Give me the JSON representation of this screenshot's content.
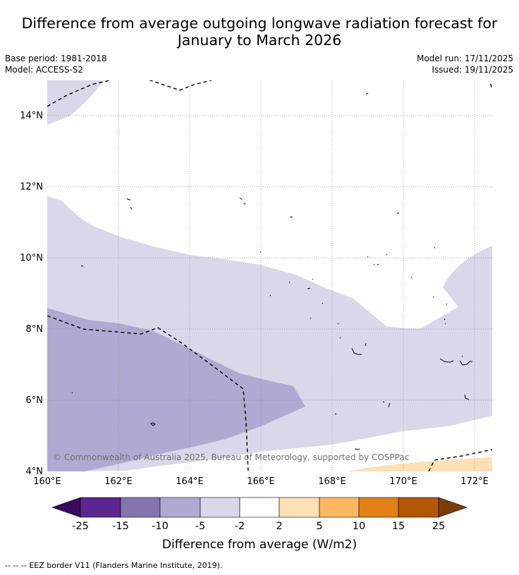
{
  "title": {
    "line1": "Difference from average outgoing longwave radiation forecast for",
    "line2": "January to March 2026"
  },
  "meta_left": {
    "base_period": "Base period: 1981-2018",
    "model": "Model: ACCESS-S2"
  },
  "meta_right": {
    "model_run": "Model run: 17/11/2025",
    "issued": "Issued: 19/11/2025"
  },
  "map": {
    "lon_range": [
      160,
      172.5
    ],
    "lat_range": [
      4,
      15
    ],
    "lat_ticks": [
      {
        "value": 14,
        "label": "14°N"
      },
      {
        "value": 12,
        "label": "12°N"
      },
      {
        "value": 10,
        "label": "10°N"
      },
      {
        "value": 8,
        "label": "8°N"
      },
      {
        "value": 6,
        "label": "6°N"
      },
      {
        "value": 4,
        "label": "4°N"
      }
    ],
    "lon_ticks": [
      {
        "value": 160,
        "label": "160°E"
      },
      {
        "value": 162,
        "label": "162°E"
      },
      {
        "value": 164,
        "label": "164°E"
      },
      {
        "value": 166,
        "label": "166°E"
      },
      {
        "value": 168,
        "label": "168°E"
      },
      {
        "value": 170,
        "label": "170°E"
      },
      {
        "value": 172,
        "label": "172°E"
      }
    ],
    "copyright": "© Commonwealth of Australia 2025, Bureau of Meteorology, supported by COSPPac",
    "colors": {
      "band_m5_m2": "#d8d8ea",
      "band_m10_m5": "#b0aad2",
      "band_p2_p5": "#fde0b6",
      "grid": "#888888",
      "eez": "#000000"
    }
  },
  "colorbar": {
    "ticks": [
      "-25",
      "-15",
      "-10",
      "-5",
      "-2",
      "2",
      "5",
      "10",
      "15",
      "25"
    ],
    "colors": [
      "#5c2690",
      "#8474b0",
      "#b0aad2",
      "#d8d8ea",
      "#ffffff",
      "#fde0b6",
      "#fbb762",
      "#e08218",
      "#b25807"
    ],
    "extend_low_color": "#3a0a5e",
    "extend_high_color": "#7f3c0b",
    "label": "Difference from average (W/m2)"
  },
  "footer": {
    "legend_symbol": "-- -- --",
    "text": "EEZ border V11 (Flanders Marine Institute, 2019)."
  }
}
